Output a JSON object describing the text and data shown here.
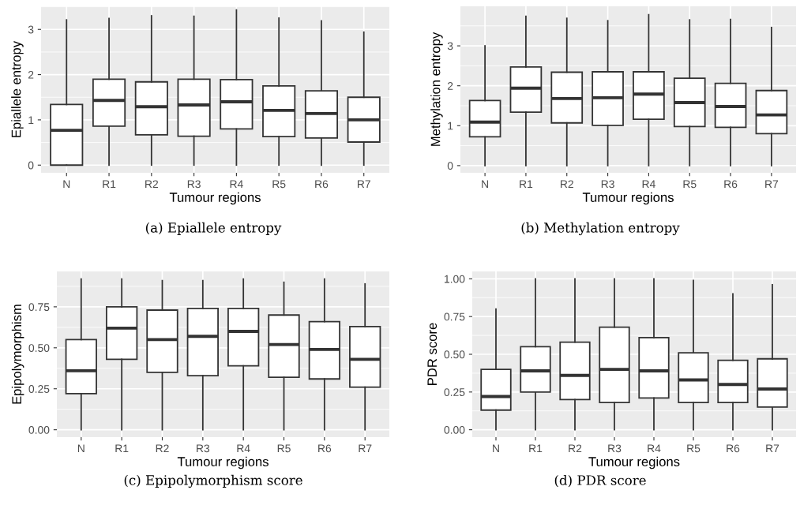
{
  "chart_data": [
    {
      "type": "box",
      "xlabel": "Tumour regions",
      "ylabel": "Epiallele entropy",
      "categories": [
        "N",
        "R1",
        "R2",
        "R3",
        "R4",
        "R5",
        "R6",
        "R7"
      ],
      "ylim": [
        -0.17,
        3.51
      ],
      "yticks": [
        0,
        1,
        2,
        3
      ],
      "grid": true,
      "annotations": [
        "(a) Epiallele entropy"
      ],
      "boxes": [
        {
          "low": 0,
          "q1": 0,
          "median": 0.77,
          "q3": 1.34,
          "high": 3.21
        },
        {
          "low": 0,
          "q1": 0.86,
          "median": 1.43,
          "q3": 1.9,
          "high": 3.24
        },
        {
          "low": 0,
          "q1": 0.67,
          "median": 1.29,
          "q3": 1.84,
          "high": 3.3
        },
        {
          "low": 0,
          "q1": 0.64,
          "median": 1.33,
          "q3": 1.9,
          "high": 3.29
        },
        {
          "low": 0,
          "q1": 0.8,
          "median": 1.4,
          "q3": 1.89,
          "high": 3.43
        },
        {
          "low": 0,
          "q1": 0.63,
          "median": 1.21,
          "q3": 1.75,
          "high": 3.25
        },
        {
          "low": 0,
          "q1": 0.6,
          "median": 1.14,
          "q3": 1.64,
          "high": 3.19
        },
        {
          "low": 0,
          "q1": 0.51,
          "median": 1.0,
          "q3": 1.5,
          "high": 2.94
        }
      ]
    },
    {
      "type": "box",
      "xlabel": "Tumour regions",
      "ylabel": "Methylation entropy",
      "categories": [
        "N",
        "R1",
        "R2",
        "R3",
        "R4",
        "R5",
        "R6",
        "R7"
      ],
      "ylim": [
        -0.18,
        3.99
      ],
      "yticks": [
        0,
        1,
        2,
        3
      ],
      "grid": true,
      "annotations": [
        "(b) Methylation entropy"
      ],
      "boxes": [
        {
          "low": 0,
          "q1": 0.72,
          "median": 1.09,
          "q3": 1.63,
          "high": 3.0
        },
        {
          "low": 0,
          "q1": 1.34,
          "median": 1.94,
          "q3": 2.47,
          "high": 3.74
        },
        {
          "low": 0,
          "q1": 1.07,
          "median": 1.68,
          "q3": 2.34,
          "high": 3.69
        },
        {
          "low": 0,
          "q1": 1.01,
          "median": 1.7,
          "q3": 2.35,
          "high": 3.63
        },
        {
          "low": 0,
          "q1": 1.16,
          "median": 1.79,
          "q3": 2.35,
          "high": 3.78
        },
        {
          "low": 0,
          "q1": 0.98,
          "median": 1.58,
          "q3": 2.19,
          "high": 3.65
        },
        {
          "low": 0,
          "q1": 0.96,
          "median": 1.48,
          "q3": 2.06,
          "high": 3.66
        },
        {
          "low": 0,
          "q1": 0.8,
          "median": 1.27,
          "q3": 1.88,
          "high": 3.46
        }
      ]
    },
    {
      "type": "box",
      "xlabel": "Tumour regions",
      "ylabel": "Epipolymorphism",
      "categories": [
        "N",
        "R1",
        "R2",
        "R3",
        "R4",
        "R5",
        "R6",
        "R7"
      ],
      "ylim": [
        -0.045,
        0.966
      ],
      "yticks": [
        {
          "value": 0,
          "label": "0.00"
        },
        {
          "value": 0.25,
          "label": "0.25"
        },
        {
          "value": 0.5,
          "label": "0.50"
        },
        {
          "value": 0.75,
          "label": "0.75"
        }
      ],
      "grid": true,
      "annotations": [
        "(c) Epipolymorphism score"
      ],
      "boxes": [
        {
          "low": 0,
          "q1": 0.22,
          "median": 0.36,
          "q3": 0.55,
          "high": 0.92
        },
        {
          "low": 0,
          "q1": 0.43,
          "median": 0.62,
          "q3": 0.75,
          "high": 0.92
        },
        {
          "low": 0,
          "q1": 0.35,
          "median": 0.55,
          "q3": 0.73,
          "high": 0.91
        },
        {
          "low": 0,
          "q1": 0.33,
          "median": 0.57,
          "q3": 0.74,
          "high": 0.91
        },
        {
          "low": 0,
          "q1": 0.39,
          "median": 0.6,
          "q3": 0.74,
          "high": 0.92
        },
        {
          "low": 0,
          "q1": 0.32,
          "median": 0.52,
          "q3": 0.7,
          "high": 0.9
        },
        {
          "low": 0,
          "q1": 0.31,
          "median": 0.49,
          "q3": 0.66,
          "high": 0.92
        },
        {
          "low": 0,
          "q1": 0.26,
          "median": 0.43,
          "q3": 0.63,
          "high": 0.89
        }
      ]
    },
    {
      "type": "box",
      "xlabel": "Tumour regions",
      "ylabel": "PDR score",
      "categories": [
        "N",
        "R1",
        "R2",
        "R3",
        "R4",
        "R5",
        "R6",
        "R7"
      ],
      "ylim": [
        -0.049,
        1.049
      ],
      "yticks": [
        {
          "value": 0,
          "label": "0.00"
        },
        {
          "value": 0.25,
          "label": "0.25"
        },
        {
          "value": 0.5,
          "label": "0.50"
        },
        {
          "value": 0.75,
          "label": "0.75"
        },
        {
          "value": 1,
          "label": "1.00"
        }
      ],
      "grid": true,
      "annotations": [
        "(d) PDR score"
      ],
      "boxes": [
        {
          "low": 0,
          "q1": 0.13,
          "median": 0.22,
          "q3": 0.4,
          "high": 0.8
        },
        {
          "low": 0,
          "q1": 0.25,
          "median": 0.39,
          "q3": 0.55,
          "high": 1.0
        },
        {
          "low": 0,
          "q1": 0.2,
          "median": 0.36,
          "q3": 0.58,
          "high": 1.0
        },
        {
          "low": 0,
          "q1": 0.18,
          "median": 0.4,
          "q3": 0.68,
          "high": 1.0
        },
        {
          "low": 0,
          "q1": 0.21,
          "median": 0.39,
          "q3": 0.61,
          "high": 1.0
        },
        {
          "low": 0,
          "q1": 0.18,
          "median": 0.33,
          "q3": 0.51,
          "high": 0.99
        },
        {
          "low": 0,
          "q1": 0.18,
          "median": 0.3,
          "q3": 0.46,
          "high": 0.9
        },
        {
          "low": 0,
          "q1": 0.15,
          "median": 0.27,
          "q3": 0.47,
          "high": 0.96
        }
      ]
    }
  ]
}
